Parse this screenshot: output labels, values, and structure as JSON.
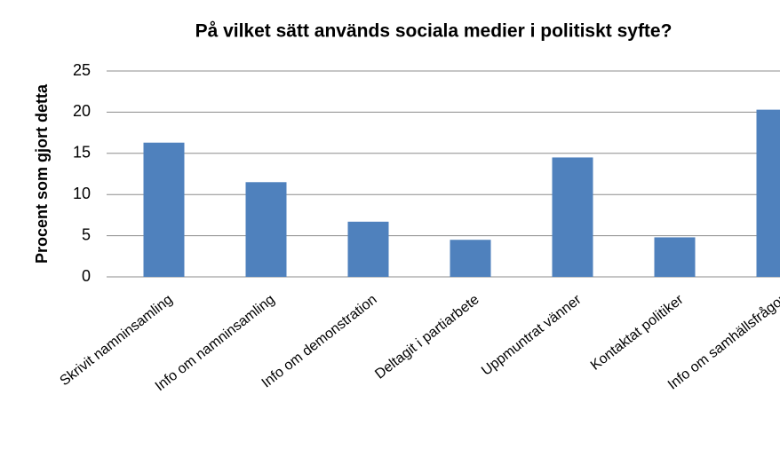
{
  "chart_data": {
    "type": "bar",
    "title": "På vilket sätt används sociala medier i politiskt syfte?",
    "y_label": "Procent som gjort detta",
    "categories": [
      "Skrivit namninsamling",
      "Info om namninsamling",
      "Info om demonstration",
      "Deltagit i partiarbete",
      "Uppmuntrat vänner",
      "Kontaktat politiker",
      "Info om samhällsfrågor"
    ],
    "values": [
      16.3,
      11.5,
      6.7,
      4.5,
      14.5,
      4.8,
      20.3
    ],
    "color": "#4f81bd",
    "ylim": [
      0,
      25
    ],
    "yticks": [
      0,
      5,
      10,
      15,
      20,
      25
    ],
    "grid": true
  }
}
